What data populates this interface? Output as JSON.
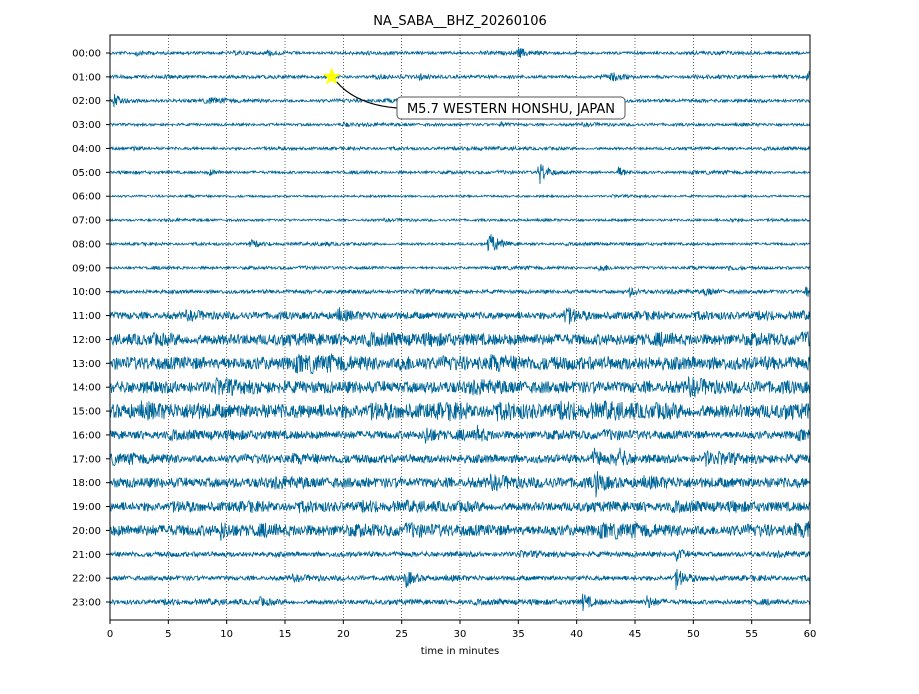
{
  "chart_data": {
    "type": "line",
    "title": "NA_SABA__BHZ_20260106",
    "xlabel": "time in minutes",
    "ylabel": "",
    "xlim": [
      0,
      60
    ],
    "x_ticks": [
      "0",
      "5",
      "10",
      "15",
      "20",
      "25",
      "30",
      "35",
      "40",
      "45",
      "50",
      "55",
      "60"
    ],
    "grid": "vertical dotted",
    "trace_color": "#006699",
    "rows": [
      {
        "label": "00:00",
        "noise": 1.5,
        "events": [
          [
            2.3,
            3
          ],
          [
            13.5,
            2.5
          ],
          [
            35,
            5
          ]
        ]
      },
      {
        "label": "01:00",
        "noise": 1.5,
        "events": [
          [
            26.5,
            2.5
          ],
          [
            43,
            4
          ],
          [
            59.8,
            5
          ]
        ]
      },
      {
        "label": "02:00",
        "noise": 1.6,
        "events": [
          [
            0.3,
            6
          ],
          [
            8.5,
            2.5
          ]
        ]
      },
      {
        "label": "03:00",
        "noise": 1.3,
        "events": [
          [
            20,
            2
          ],
          [
            33.5,
            2
          ]
        ]
      },
      {
        "label": "04:00",
        "noise": 1.3,
        "events": [
          [
            2,
            2
          ],
          [
            31,
            2
          ]
        ]
      },
      {
        "label": "05:00",
        "noise": 1.3,
        "events": [
          [
            36.8,
            12
          ],
          [
            43.5,
            6
          ],
          [
            8.5,
            2.5
          ]
        ]
      },
      {
        "label": "06:00",
        "noise": 1.0,
        "events": []
      },
      {
        "label": "07:00",
        "noise": 1.1,
        "events": [
          [
            53,
            2
          ]
        ]
      },
      {
        "label": "08:00",
        "noise": 1.2,
        "events": [
          [
            12,
            4
          ],
          [
            32.5,
            14
          ],
          [
            18,
            2
          ]
        ]
      },
      {
        "label": "09:00",
        "noise": 1.3,
        "events": [
          [
            42,
            5
          ],
          [
            53,
            2.5
          ]
        ]
      },
      {
        "label": "10:00",
        "noise": 1.8,
        "events": [
          [
            44.5,
            4
          ],
          [
            51,
            3.5
          ],
          [
            59.7,
            8
          ]
        ]
      },
      {
        "label": "11:00",
        "noise": 3.5,
        "events": [
          [
            19.5,
            4
          ],
          [
            39,
            8
          ]
        ]
      },
      {
        "label": "12:00",
        "noise": 5.5,
        "events": []
      },
      {
        "label": "13:00",
        "noise": 6.5,
        "events": [
          [
            25,
            6
          ]
        ]
      },
      {
        "label": "14:00",
        "noise": 6.0,
        "events": []
      },
      {
        "label": "15:00",
        "noise": 7.0,
        "events": [
          [
            7,
            4
          ]
        ]
      },
      {
        "label": "16:00",
        "noise": 4.0,
        "events": [
          [
            27,
            8
          ],
          [
            31.5,
            6
          ]
        ]
      },
      {
        "label": "17:00",
        "noise": 4.2,
        "events": [
          [
            43.5,
            10
          ],
          [
            51,
            6
          ],
          [
            41.5,
            8
          ]
        ]
      },
      {
        "label": "18:00",
        "noise": 5.0,
        "events": [
          [
            41.6,
            10
          ]
        ]
      },
      {
        "label": "19:00",
        "noise": 4.5,
        "events": []
      },
      {
        "label": "20:00",
        "noise": 5.5,
        "events": [
          [
            9.5,
            6
          ],
          [
            59.8,
            8
          ]
        ]
      },
      {
        "label": "21:00",
        "noise": 2.5,
        "events": [
          [
            48.5,
            5
          ]
        ]
      },
      {
        "label": "22:00",
        "noise": 2.3,
        "events": [
          [
            25.3,
            9
          ],
          [
            48.5,
            9
          ]
        ]
      },
      {
        "label": "23:00",
        "noise": 2.3,
        "events": [
          [
            40.5,
            8
          ],
          [
            46,
            6
          ],
          [
            12.8,
            3
          ]
        ]
      }
    ],
    "annotation": {
      "text": "M5.7 WESTERN HONSHU, JAPAN",
      "row": 1,
      "minute": 19,
      "marker_color": "#ffff00"
    }
  }
}
